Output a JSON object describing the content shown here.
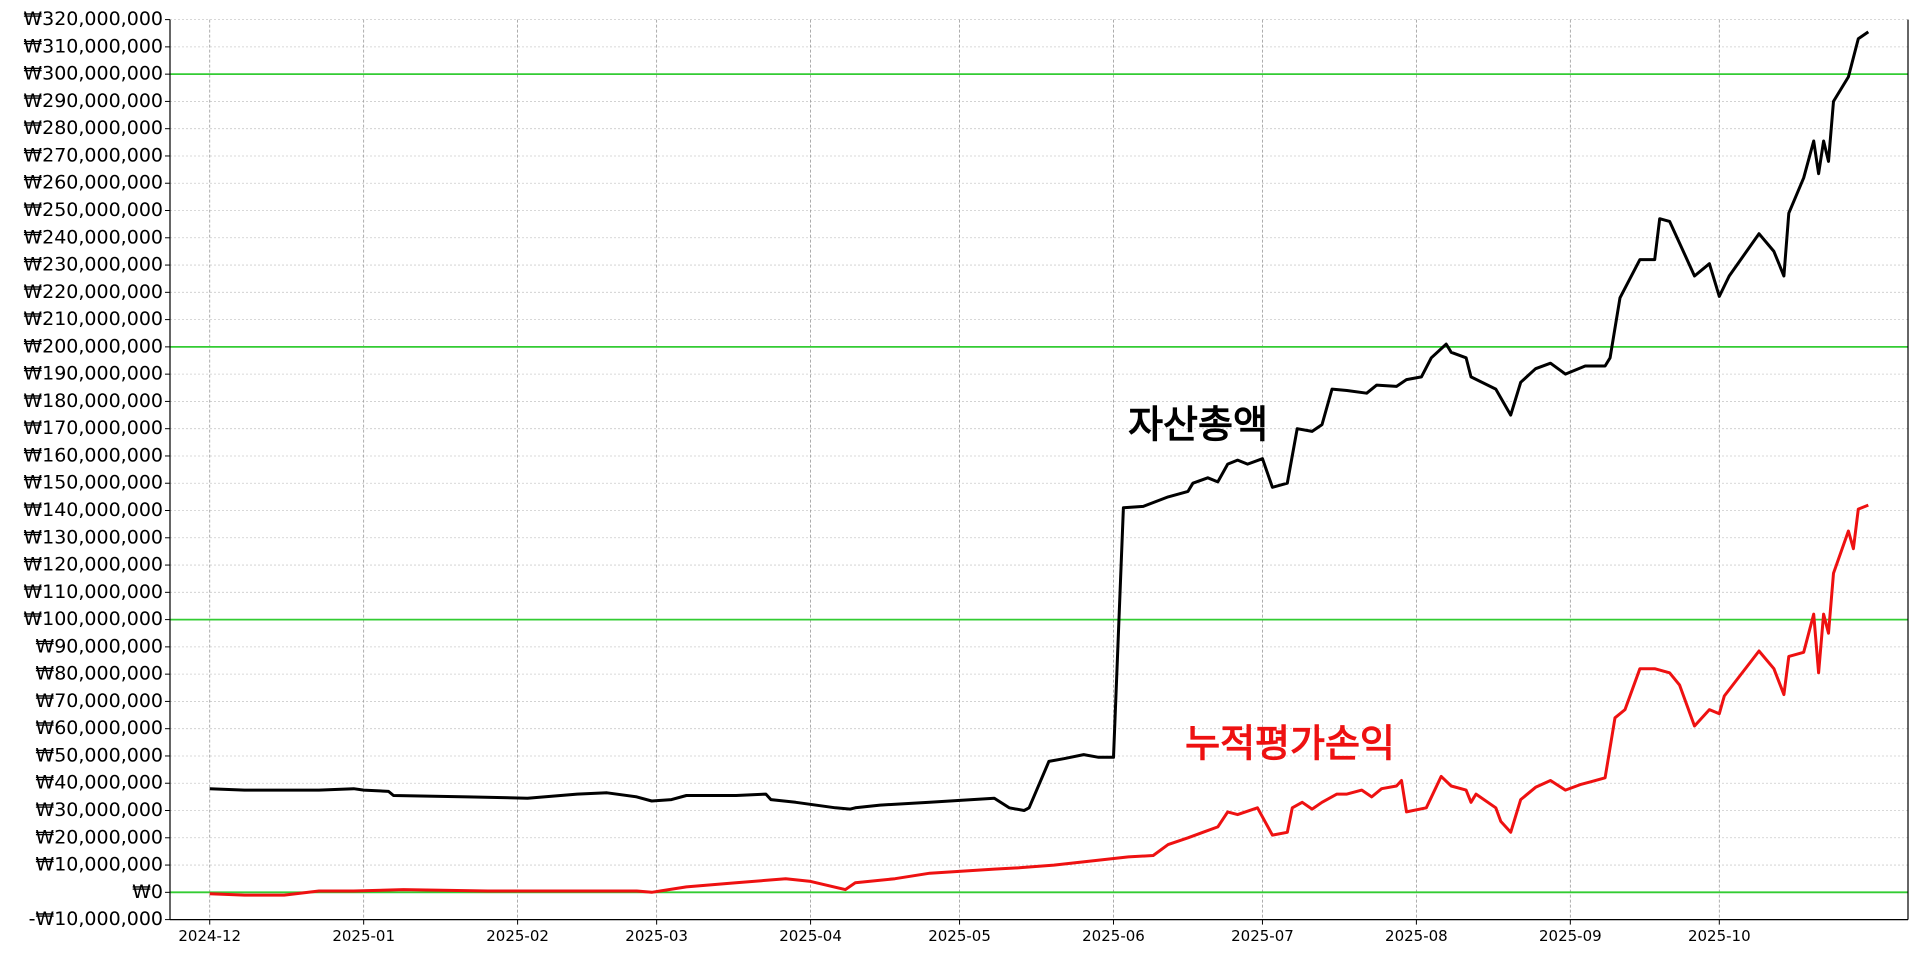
{
  "chart_data": {
    "type": "line",
    "xlim": [
      -8,
      342
    ],
    "xticks": [
      {
        "value": 0,
        "label": "2024-12"
      },
      {
        "value": 31,
        "label": "2025-01"
      },
      {
        "value": 62,
        "label": "2025-02"
      },
      {
        "value": 90,
        "label": "2025-03"
      },
      {
        "value": 121,
        "label": "2025-04"
      },
      {
        "value": 151,
        "label": "2025-05"
      },
      {
        "value": 182,
        "label": "2025-06"
      },
      {
        "value": 212,
        "label": "2025-07"
      },
      {
        "value": 243,
        "label": "2025-08"
      },
      {
        "value": 274,
        "label": "2025-09"
      },
      {
        "value": 304,
        "label": "2025-10"
      }
    ],
    "ylim": [
      -10000000,
      320000000
    ],
    "yticks": [
      {
        "value": -10000000,
        "label": "-₩10,000,000"
      },
      {
        "value": 0,
        "label": "₩0"
      },
      {
        "value": 10000000,
        "label": "₩10,000,000"
      },
      {
        "value": 20000000,
        "label": "₩20,000,000"
      },
      {
        "value": 30000000,
        "label": "₩30,000,000"
      },
      {
        "value": 40000000,
        "label": "₩40,000,000"
      },
      {
        "value": 50000000,
        "label": "₩50,000,000"
      },
      {
        "value": 60000000,
        "label": "₩60,000,000"
      },
      {
        "value": 70000000,
        "label": "₩70,000,000"
      },
      {
        "value": 80000000,
        "label": "₩80,000,000"
      },
      {
        "value": 90000000,
        "label": "₩90,000,000"
      },
      {
        "value": 100000000,
        "label": "₩100,000,000"
      },
      {
        "value": 110000000,
        "label": "₩110,000,000"
      },
      {
        "value": 120000000,
        "label": "₩120,000,000"
      },
      {
        "value": 130000000,
        "label": "₩130,000,000"
      },
      {
        "value": 140000000,
        "label": "₩140,000,000"
      },
      {
        "value": 150000000,
        "label": "₩150,000,000"
      },
      {
        "value": 160000000,
        "label": "₩160,000,000"
      },
      {
        "value": 170000000,
        "label": "₩170,000,000"
      },
      {
        "value": 180000000,
        "label": "₩180,000,000"
      },
      {
        "value": 190000000,
        "label": "₩190,000,000"
      },
      {
        "value": 200000000,
        "label": "₩200,000,000"
      },
      {
        "value": 210000000,
        "label": "₩210,000,000"
      },
      {
        "value": 220000000,
        "label": "₩220,000,000"
      },
      {
        "value": 230000000,
        "label": "₩230,000,000"
      },
      {
        "value": 240000000,
        "label": "₩240,000,000"
      },
      {
        "value": 250000000,
        "label": "₩250,000,000"
      },
      {
        "value": 260000000,
        "label": "₩260,000,000"
      },
      {
        "value": 270000000,
        "label": "₩270,000,000"
      },
      {
        "value": 280000000,
        "label": "₩280,000,000"
      },
      {
        "value": 290000000,
        "label": "₩290,000,000"
      },
      {
        "value": 300000000,
        "label": "₩300,000,000"
      },
      {
        "value": 310000000,
        "label": "₩310,000,000"
      },
      {
        "value": 320000000,
        "label": "₩320,000,000"
      }
    ],
    "grid": true,
    "hlines": [
      0,
      100000000,
      200000000,
      300000000
    ],
    "hline_color": "#33cc33",
    "series": [
      {
        "name": "자산총액",
        "color": "#000000",
        "x": [
          0,
          7,
          22,
          29,
          31,
          36,
          37,
          52,
          64,
          74,
          80,
          86,
          89,
          93,
          96,
          106,
          112,
          113,
          118,
          126,
          129,
          130,
          135,
          145,
          158,
          161,
          164,
          165,
          169,
          172,
          176,
          179,
          182,
          184,
          188,
          193,
          197,
          198,
          201,
          203,
          205,
          207,
          209,
          212,
          214,
          217,
          219,
          222,
          224,
          226,
          229,
          233,
          235,
          239,
          241,
          244,
          246,
          249,
          250,
          253,
          254,
          259,
          262,
          264,
          267,
          270,
          273,
          277,
          281,
          282,
          284,
          288,
          291,
          292,
          294,
          296,
          299,
          302,
          304,
          306,
          312,
          315,
          317,
          318,
          321,
          323,
          324,
          325,
          326,
          327,
          330,
          332,
          334
        ],
        "values": [
          38000000,
          37500000,
          37500000,
          38000000,
          37500000,
          37000000,
          35500000,
          35000000,
          34500000,
          36000000,
          36500000,
          35000000,
          33500000,
          34000000,
          35500000,
          35500000,
          36000000,
          34000000,
          33000000,
          31000000,
          30500000,
          31000000,
          32000000,
          33000000,
          34500000,
          31000000,
          30000000,
          31000000,
          48000000,
          49000000,
          50500000,
          49500000,
          49500000,
          141000000,
          141500000,
          145000000,
          147000000,
          150000000,
          152000000,
          150500000,
          157000000,
          158500000,
          157000000,
          159000000,
          148500000,
          150000000,
          170000000,
          169000000,
          171500000,
          184500000,
          184000000,
          183000000,
          186000000,
          185500000,
          188000000,
          189000000,
          196000000,
          201000000,
          198000000,
          196000000,
          189000000,
          184500000,
          175000000,
          187000000,
          192000000,
          194000000,
          190000000,
          193000000,
          193000000,
          196000000,
          218000000,
          232000000,
          232000000,
          247000000,
          246000000,
          238000000,
          226000000,
          230500000,
          218500000,
          226000000,
          241500000,
          235000000,
          226000000,
          249000000,
          262000000,
          275500000,
          263500000,
          275500000,
          268000000,
          290000000,
          299000000,
          313000000,
          315500000
        ]
      },
      {
        "name": "누적평가손익",
        "color": "#ee1111",
        "x": [
          0,
          7,
          15,
          22,
          29,
          39,
          56,
          66,
          76,
          86,
          89,
          96,
          106,
          116,
          121,
          128,
          130,
          138,
          145,
          158,
          163,
          170,
          180,
          185,
          190,
          193,
          197,
          200,
          203,
          205,
          207,
          211,
          214,
          217,
          218,
          220,
          222,
          224,
          227,
          229,
          232,
          234,
          236,
          239,
          240,
          241,
          245,
          248,
          250,
          253,
          254,
          255,
          259,
          260,
          262,
          264,
          267,
          270,
          273,
          276,
          278,
          281,
          283,
          285,
          288,
          291,
          294,
          296,
          299,
          302,
          304,
          305,
          312,
          315,
          317,
          318,
          321,
          323,
          324,
          325,
          326,
          327,
          330,
          331,
          332,
          334
        ],
        "values": [
          -500000,
          -1000000,
          -1000000,
          500000,
          500000,
          1000000,
          500000,
          500000,
          500000,
          500000,
          0,
          2000000,
          3500000,
          5000000,
          4000000,
          1000000,
          3500000,
          5000000,
          7000000,
          8500000,
          9000000,
          10000000,
          12000000,
          13000000,
          13500000,
          17500000,
          20000000,
          22000000,
          24000000,
          29500000,
          28500000,
          31000000,
          21000000,
          22000000,
          31000000,
          33000000,
          30500000,
          33000000,
          36000000,
          36000000,
          37500000,
          35000000,
          38000000,
          39000000,
          41000000,
          29500000,
          31000000,
          42500000,
          39000000,
          37500000,
          33000000,
          36000000,
          31000000,
          26000000,
          22000000,
          34000000,
          38500000,
          41000000,
          37500000,
          39500000,
          40500000,
          42000000,
          64000000,
          67000000,
          82000000,
          82000000,
          80500000,
          76000000,
          61000000,
          67000000,
          65500000,
          72000000,
          88500000,
          82000000,
          72500000,
          86500000,
          88000000,
          102000000,
          80500000,
          102000000,
          95000000,
          117000000,
          132500000,
          126000000,
          140500000,
          142000000
        ]
      }
    ]
  }
}
